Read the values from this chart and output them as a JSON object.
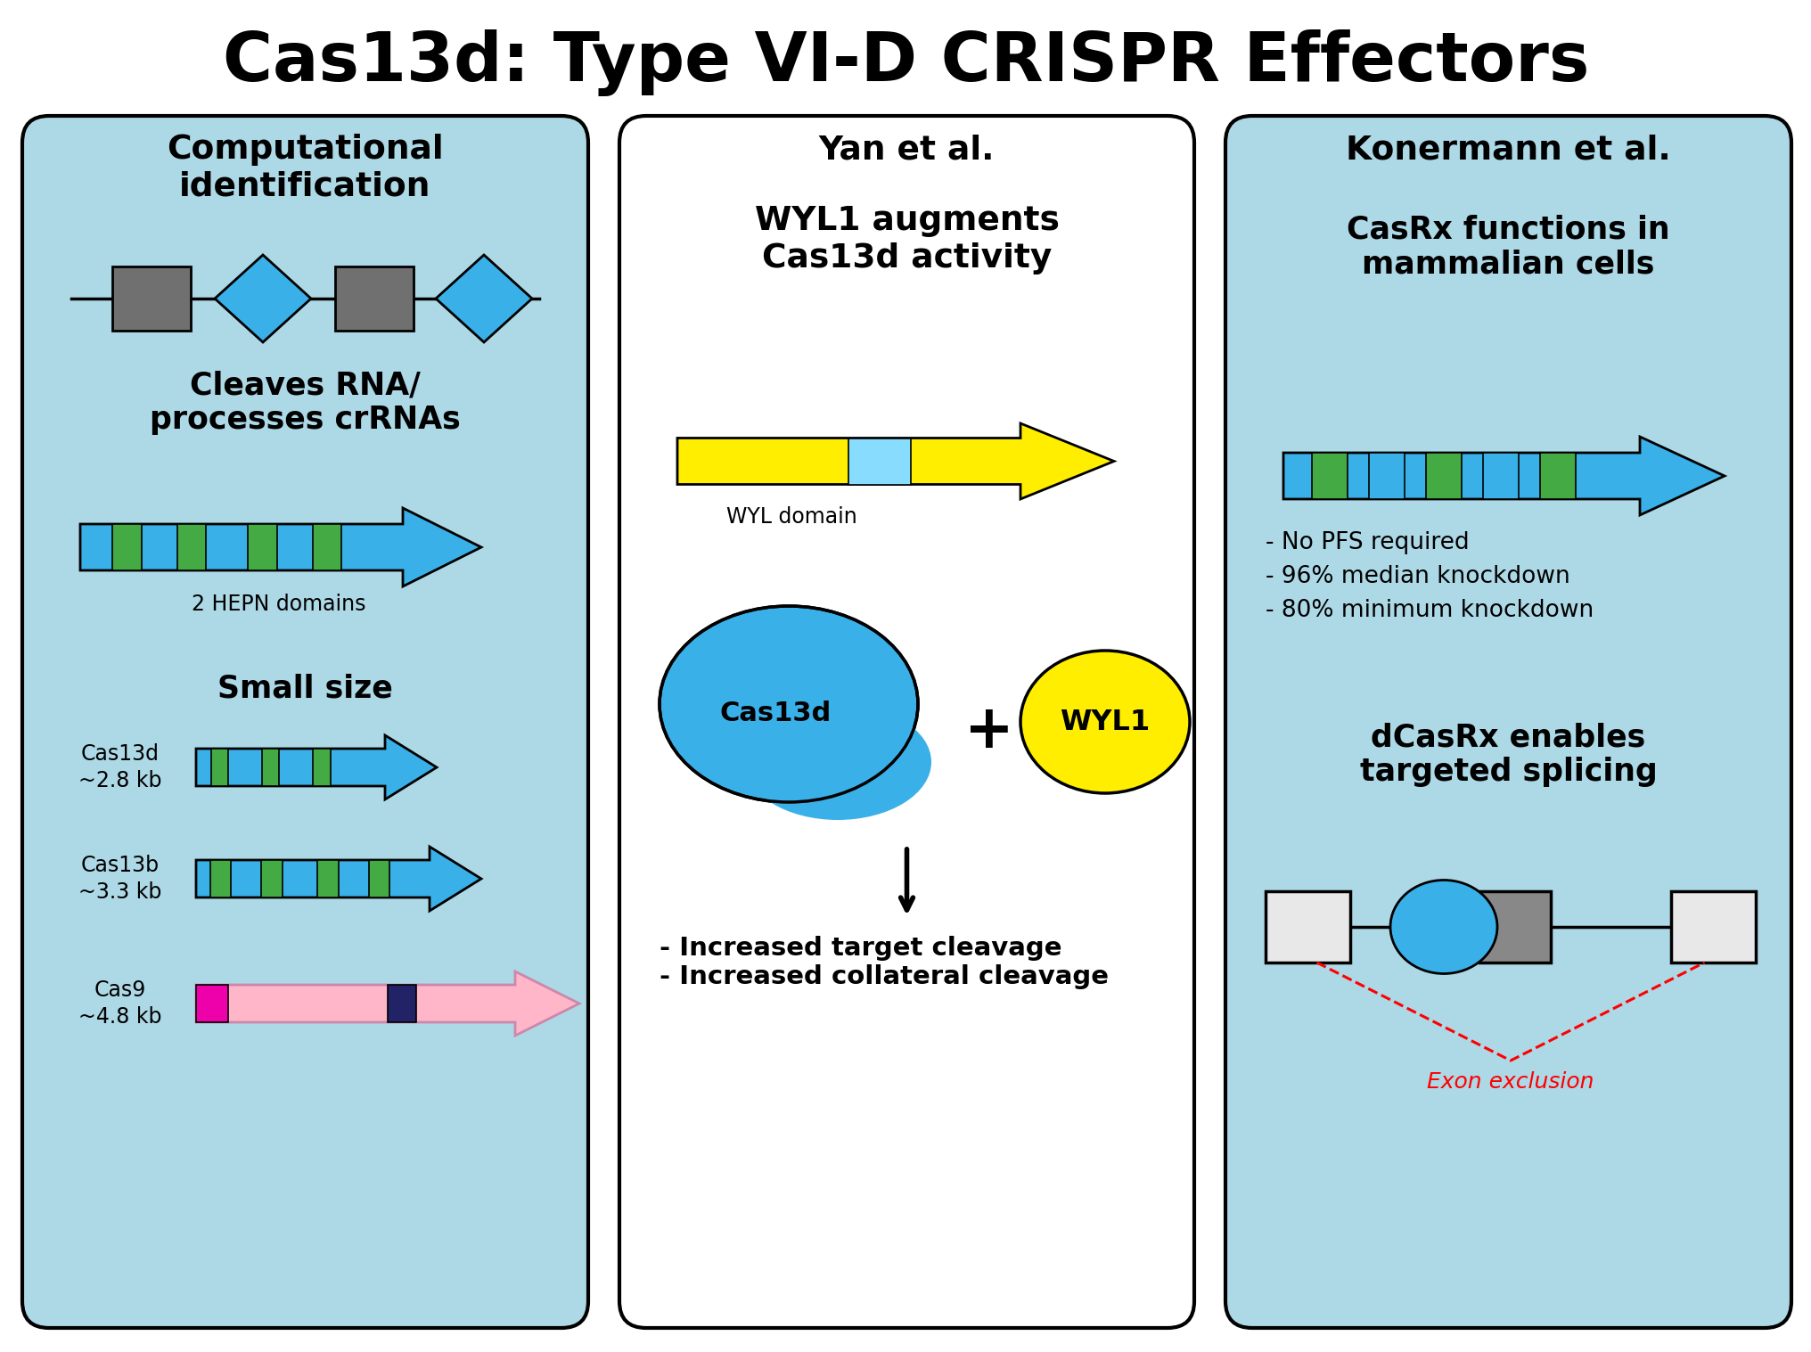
{
  "title": "Cas13d: Type VI-D CRISPR Effectors",
  "title_fontsize": 55,
  "bg_color": "#ffffff",
  "panel_bg_blue": "#add8e6",
  "panel_bg_white": "#ffffff",
  "blue": "#3ab0e8",
  "green": "#44aa44",
  "gray_dark": "#707070",
  "gray_light": "#aaaaaa",
  "yellow": "#ffee00",
  "light_blue_seg": "#88ddff",
  "pink": "#ffb6c8",
  "magenta": "#ee00aa",
  "navy": "#222266",
  "left_header": "Computational\nidentification",
  "left_text1": "Cleaves RNA/\nprocesses crRNAs",
  "left_hepn_label": "2 HEPN domains",
  "left_text2": "Small size",
  "mid_header": "Yan et al.",
  "mid_text1": "WYL1 augments\nCas13d activity",
  "mid_wyl_label": "WYL domain",
  "mid_cas13d": "Cas13d",
  "mid_wyl1": "WYL1",
  "mid_result": "- Increased target cleavage\n- Increased collateral cleavage",
  "right_header": "Konermann et al.",
  "right_text1": "CasRx functions in\nmammalian cells",
  "right_bullets": "- No PFS required\n- 96% median knockdown\n- 80% minimum knockdown",
  "right_text2": "dCasRx enables\ntargeted splicing",
  "right_exon": "Exon exclusion"
}
